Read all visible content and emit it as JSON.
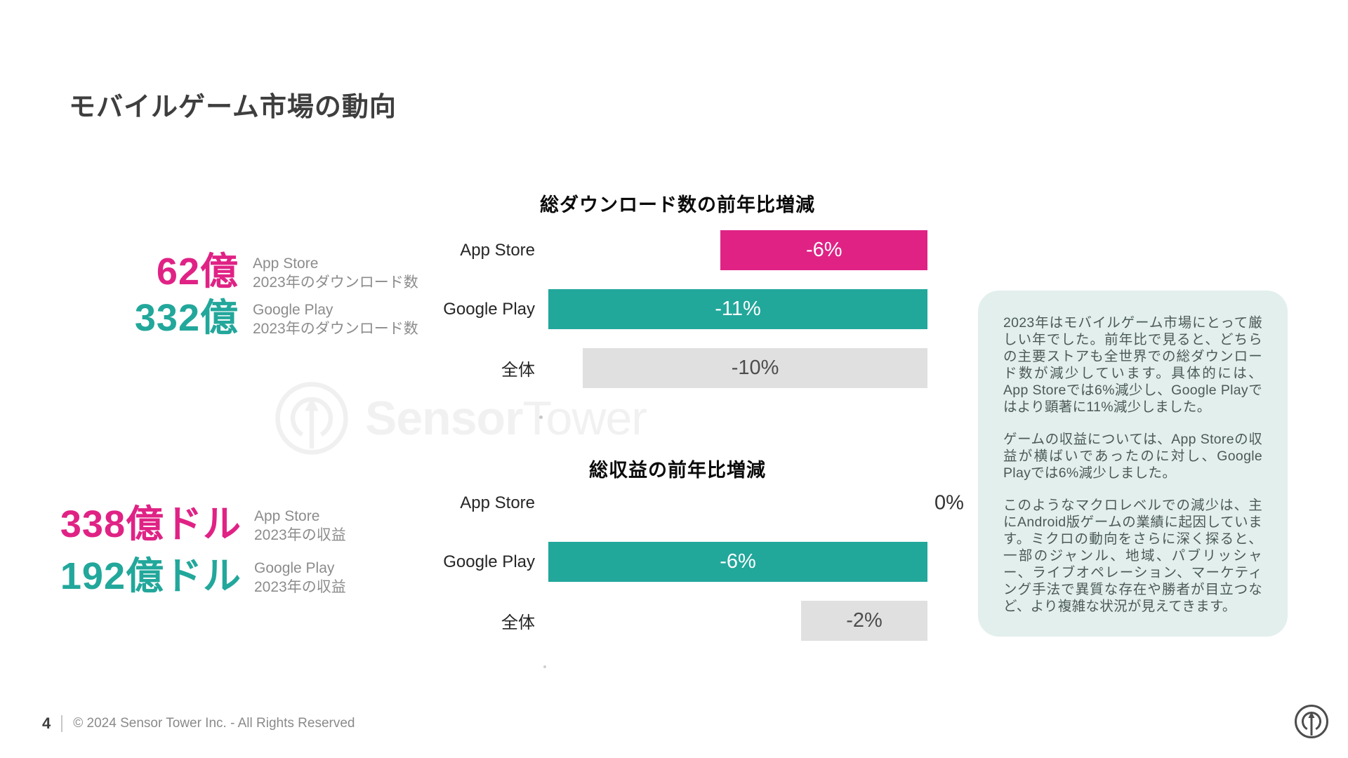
{
  "slide": {
    "title": "モバイルゲーム市場の動向",
    "watermark": {
      "brand_bold": "Sensor",
      "brand_light": "Tower"
    },
    "footer": {
      "page_number": "4",
      "copyright": "© 2024 Sensor Tower Inc. - All Rights Reserved"
    }
  },
  "colors": {
    "app_store_pink": "#E02285",
    "google_play_teal": "#22A79B",
    "overall_gray": "#E0E0E0",
    "panel_background": "#E2EFED"
  },
  "stats": {
    "downloads": [
      {
        "value": "62億",
        "store": "App Store",
        "desc": "2023年のダウンロード数",
        "color": "#E02285"
      },
      {
        "value": "332億",
        "store": "Google Play",
        "desc": "2023年のダウンロード数",
        "color": "#22A79B"
      }
    ],
    "revenue": [
      {
        "value": "338億ドル",
        "store": "App Store",
        "desc": "2023年の収益",
        "color": "#E02285"
      },
      {
        "value": "192億ドル",
        "store": "Google Play",
        "desc": "2023年の収益",
        "color": "#22A79B"
      }
    ]
  },
  "chart_data": [
    {
      "type": "bar",
      "orientation": "horizontal-right-aligned",
      "title": "総ダウンロード数の前年比増減",
      "categories": [
        "App Store",
        "Google Play",
        "全体"
      ],
      "values": [
        -6,
        -11,
        -10
      ],
      "value_labels": [
        "-6%",
        "-11%",
        "-10%"
      ],
      "bar_colors": [
        "#E02285",
        "#22A79B",
        "#E0E0E0"
      ],
      "label_colors": [
        "#FFFFFF",
        "#FFFFFF",
        "#4D4D4D"
      ],
      "xlim": [
        -11,
        0
      ],
      "unit": "percent_change_yoy",
      "grid": false,
      "legend": false
    },
    {
      "type": "bar",
      "orientation": "horizontal-right-aligned",
      "title": "総収益の前年比増減",
      "categories": [
        "App Store",
        "Google Play",
        "全体"
      ],
      "values": [
        0,
        -6,
        -2
      ],
      "value_labels": [
        "0%",
        "-6%",
        "-2%"
      ],
      "bar_colors": [
        "#E02285",
        "#22A79B",
        "#E0E0E0"
      ],
      "label_colors": [
        "#333333",
        "#FFFFFF",
        "#4D4D4D"
      ],
      "xlim": [
        -6,
        0
      ],
      "unit": "percent_change_yoy",
      "grid": false,
      "legend": false
    }
  ],
  "insight_panel": {
    "paragraphs": [
      "2023年はモバイルゲーム市場にとって厳しい年でした。前年比で見ると、どちらの主要ストアも全世界での総ダウンロード数が減少しています。具体的には、App Storeでは6%減少し、Google Playではより顕著に11%減少しました。",
      "ゲームの収益については、App Storeの収益が横ばいであったのに対し、Google Playでは6%減少しました。",
      "このようなマクロレベルでの減少は、主にAndroid版ゲームの業績に起因しています。ミクロの動向をさらに深く探ると、一部のジャンル、地域、パブリッシャー、ライブオペレーション、マーケティング手法で異質な存在や勝者が目立つなど、より複雑な状況が見えてきます。"
    ]
  }
}
